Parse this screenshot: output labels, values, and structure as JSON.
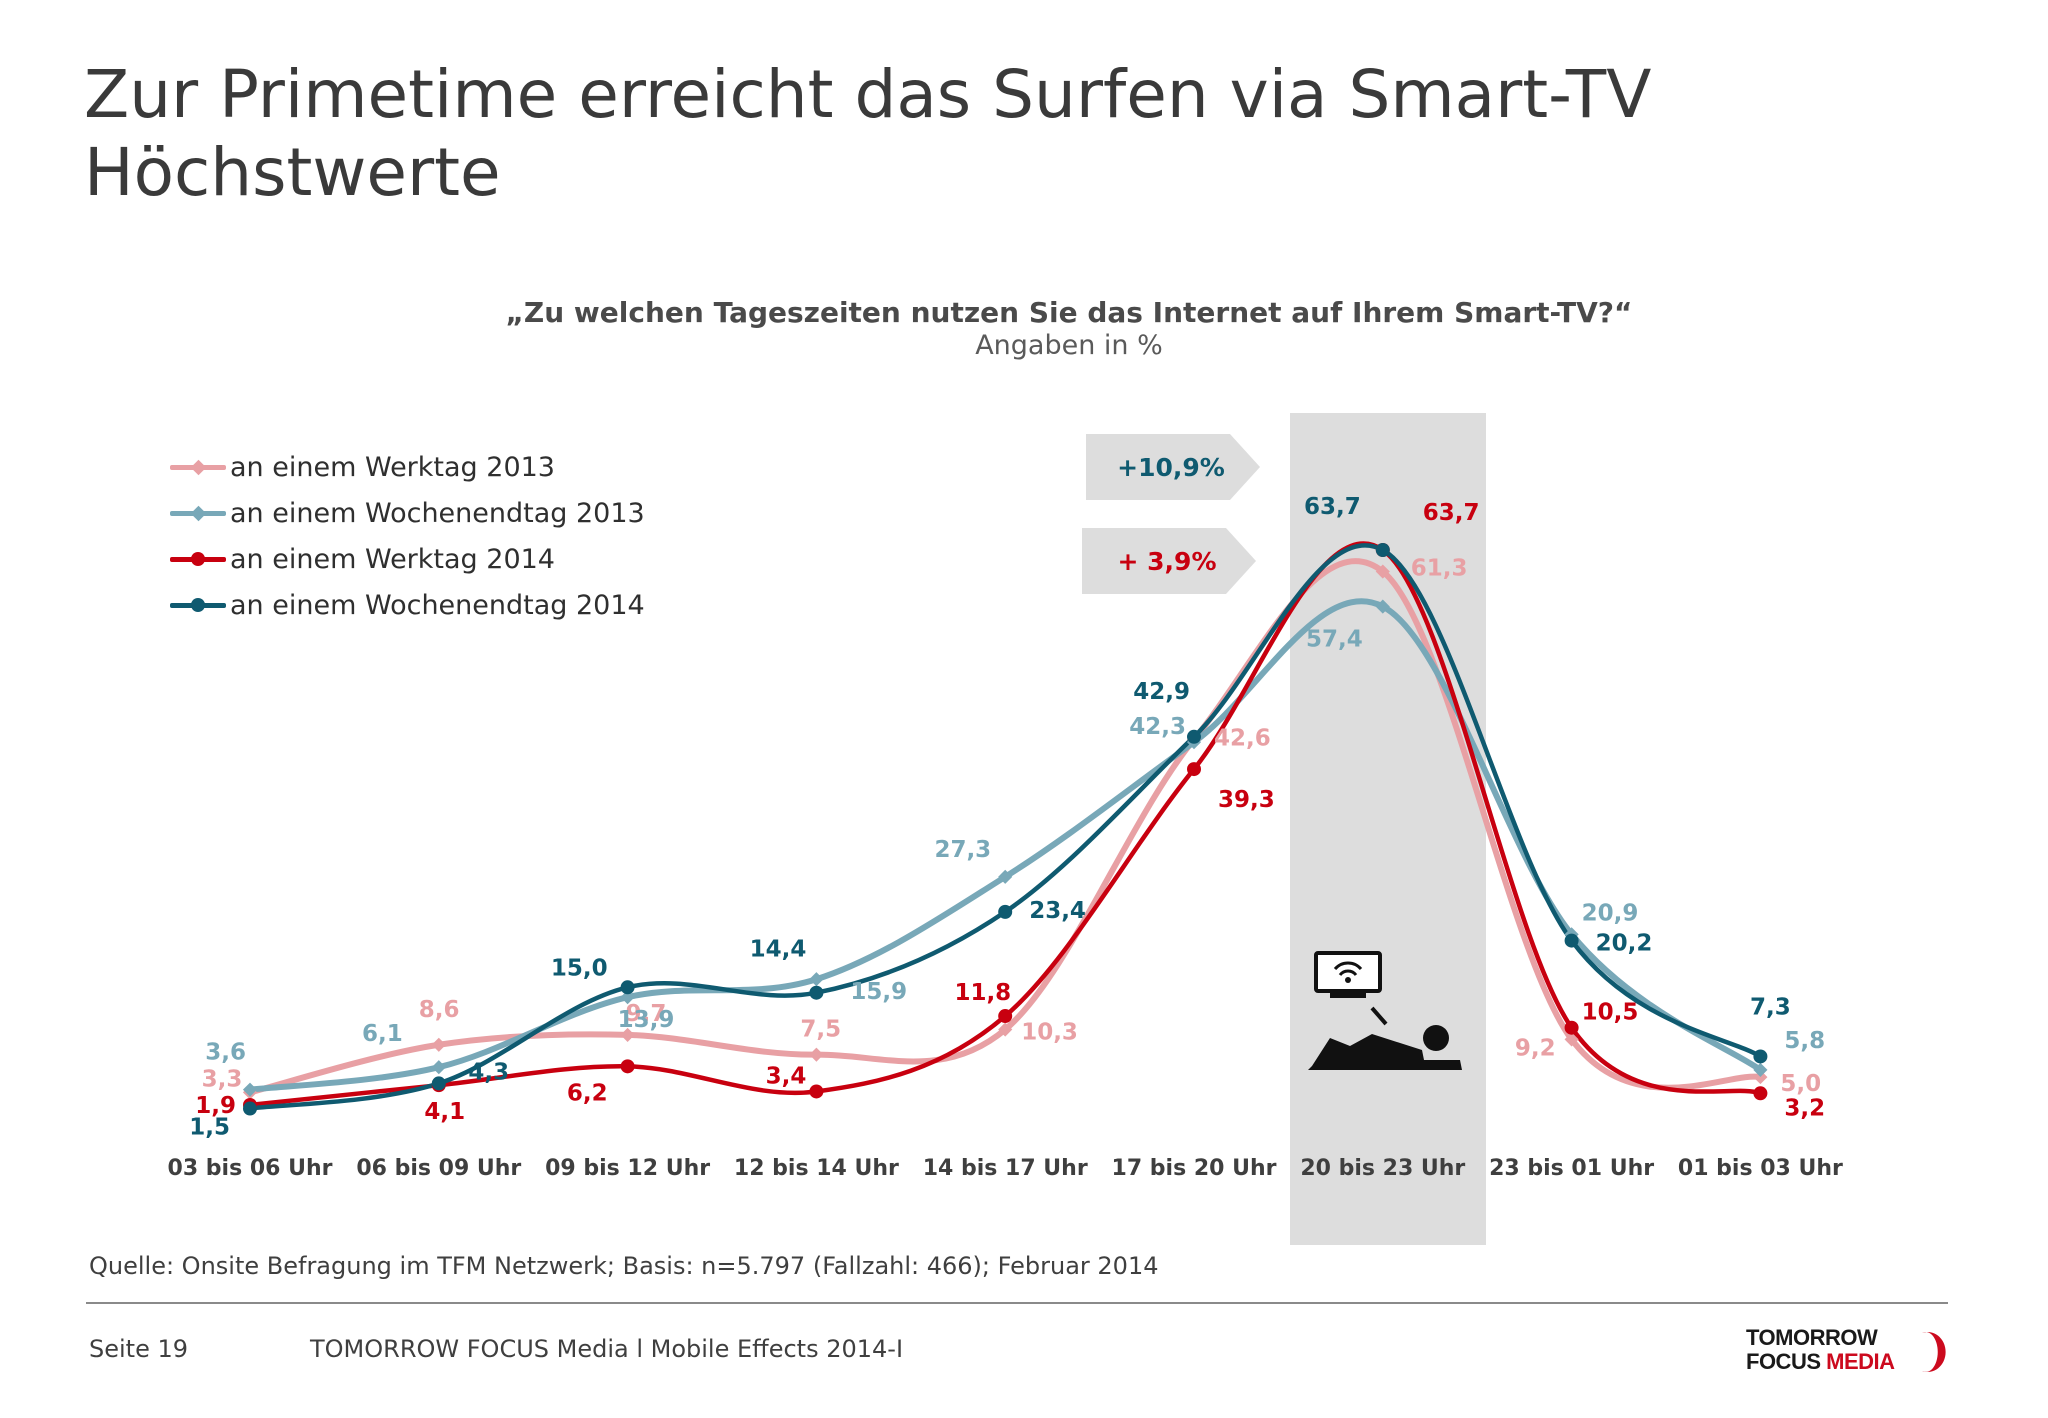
{
  "title": "Zur Primetime erreicht das Surfen via Smart-TV Höchstwerte",
  "question": "„Zu welchen Tageszeiten nutzen Sie das Internet auf Ihrem Smart-TV?“",
  "unit_note": "Angaben in %",
  "legend": [
    {
      "label": "an einem Werktag 2013",
      "color": "#e8a0a4",
      "marker": "diamond"
    },
    {
      "label": "an einem Wochenendtag 2013",
      "color": "#78a8b8",
      "marker": "diamond"
    },
    {
      "label": "an einem Werktag 2014",
      "color": "#c8000f",
      "marker": "circle"
    },
    {
      "label": "an einem Wochenendtag 2014",
      "color": "#0f5a70",
      "marker": "circle"
    }
  ],
  "callouts": [
    {
      "text": "+10,9%",
      "color": "#0f5a70"
    },
    {
      "text": "+ 3,9%",
      "color": "#c8000f"
    }
  ],
  "chart_data": {
    "type": "line",
    "categories": [
      "03 bis 06 Uhr",
      "06 bis 09 Uhr",
      "09 bis 12 Uhr",
      "12 bis 14 Uhr",
      "14 bis 17 Uhr",
      "17 bis 20 Uhr",
      "20 bis 23 Uhr",
      "23 bis 01 Uhr",
      "01 bis 03 Uhr"
    ],
    "highlight_category": "20 bis 23 Uhr",
    "ylim": [
      0,
      70
    ],
    "series": [
      {
        "name": "an einem Werktag 2013",
        "color": "#e8a0a4",
        "marker": "diamond",
        "values": [
          3.3,
          8.6,
          9.7,
          7.5,
          10.3,
          42.6,
          61.3,
          9.2,
          5.0
        ],
        "labels": [
          "3,3",
          "8,6",
          "9,7",
          "7,5",
          "10,3",
          "42,6",
          "61,3",
          "9,2",
          "5,0"
        ]
      },
      {
        "name": "an einem Wochenendtag 2013",
        "color": "#78a8b8",
        "marker": "diamond",
        "values": [
          3.6,
          6.1,
          13.9,
          15.9,
          27.3,
          42.3,
          57.4,
          20.9,
          5.8
        ],
        "labels": [
          "3,6",
          "6,1",
          "13,9",
          "15,9",
          "27,3",
          "42,3",
          "57,4",
          "20,9",
          "5,8"
        ]
      },
      {
        "name": "an einem Werktag 2014",
        "color": "#c8000f",
        "marker": "circle",
        "values": [
          1.9,
          4.1,
          6.2,
          3.4,
          11.8,
          39.3,
          63.7,
          10.5,
          3.2
        ],
        "labels": [
          "1,9",
          "4,1",
          "6,2",
          "3,4",
          "11,8",
          "39,3",
          "63,7",
          "10,5",
          "3,2"
        ]
      },
      {
        "name": "an einem Wochenendtag 2014",
        "color": "#0f5a70",
        "marker": "circle",
        "values": [
          1.5,
          4.3,
          15.0,
          14.4,
          23.4,
          42.9,
          63.7,
          20.2,
          7.3
        ],
        "labels": [
          "1,5",
          "4,3",
          "15,0",
          "14,4",
          "23,4",
          "42,9",
          "63,7",
          "20,2",
          "7,3"
        ]
      }
    ]
  },
  "source": "Quelle: Onsite Befragung im TFM Netzwerk; Basis: n=5.797 (Fallzahl: 466); Februar 2014",
  "footer": {
    "page": "Seite 19",
    "doc_title": "TOMORROW FOCUS Media  l  Mobile Effects 2014-I",
    "logo_line1": "TOMORROW",
    "logo_line2a": "FOCUS",
    "logo_line2b": "MEDIA"
  }
}
